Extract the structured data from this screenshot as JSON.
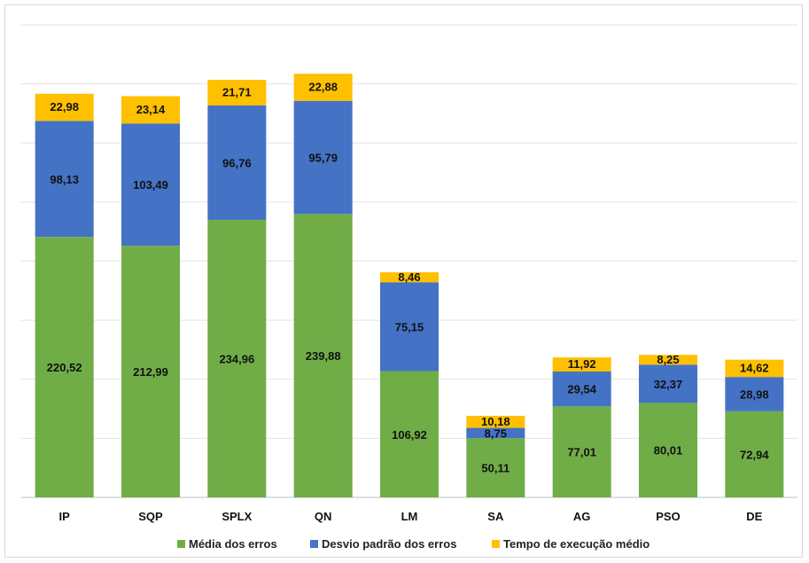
{
  "chart_data": {
    "type": "bar",
    "stacked": true,
    "categories": [
      "IP",
      "SQP",
      "SPLX",
      "QN",
      "LM",
      "SA",
      "AG",
      "PSO",
      "DE"
    ],
    "series": [
      {
        "name": "Média dos erros",
        "color": "#70ad47",
        "values": [
          220.52,
          212.99,
          234.96,
          239.88,
          106.92,
          50.11,
          77.01,
          80.01,
          72.94
        ],
        "labels": [
          "220,52",
          "212,99",
          "234,96",
          "239,88",
          "106,92",
          "50,11",
          "77,01",
          "80,01",
          "72,94"
        ]
      },
      {
        "name": "Desvio padrão dos erros",
        "color": "#4472c4",
        "values": [
          98.13,
          103.49,
          96.76,
          95.79,
          75.15,
          8.75,
          29.54,
          32.37,
          28.98
        ],
        "labels": [
          "98,13",
          "103,49",
          "96,76",
          "95,79",
          "75,15",
          "8,75",
          "29,54",
          "32,37",
          "28,98"
        ]
      },
      {
        "name": "Tempo de execução médio",
        "color": "#ffc000",
        "values": [
          22.98,
          23.14,
          21.71,
          22.88,
          8.46,
          10.18,
          11.92,
          8.25,
          14.62
        ],
        "labels": [
          "22,98",
          "23,14",
          "21,71",
          "22,88",
          "8,46",
          "10,18",
          "11,92",
          "8,25",
          "14,62"
        ]
      }
    ],
    "ylim": [
      0,
      400
    ],
    "grid": true,
    "legend": "bottom"
  }
}
